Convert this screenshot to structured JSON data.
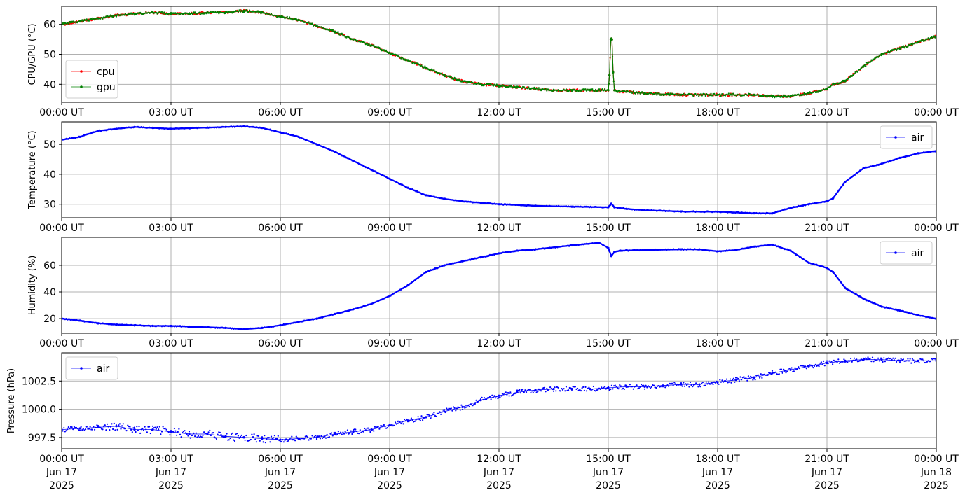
{
  "figure": {
    "x_tick_labels": [
      "00:00 UT",
      "03:00 UT",
      "06:00 UT",
      "09:00 UT",
      "12:00 UT",
      "15:00 UT",
      "18:00 UT",
      "21:00 UT",
      "00:00 UT"
    ],
    "x_date_labels": [
      "Jun 17",
      "Jun 17",
      "Jun 17",
      "Jun 17",
      "Jun 17",
      "Jun 17",
      "Jun 17",
      "Jun 17",
      "Jun 18"
    ],
    "x_year_labels": [
      "2025",
      "2025",
      "2025",
      "2025",
      "2025",
      "2025",
      "2025",
      "2025",
      "2025"
    ]
  },
  "chart_data": [
    {
      "type": "line",
      "ylabel": "CPU/GPU (°C)",
      "xlim": [
        "2025-06-17T00:00",
        "2025-06-18T00:00"
      ],
      "ylim": [
        34,
        66
      ],
      "yticks": [
        40,
        50,
        60
      ],
      "ytick_labels": [
        "40",
        "50",
        "60"
      ],
      "grid": true,
      "legend": "lower-left",
      "series": [
        {
          "name": "cpu",
          "color": "#ff0000",
          "x": [
            "00:00",
            "00:30",
            "01:00",
            "01:30",
            "02:00",
            "02:30",
            "03:00",
            "03:30",
            "04:00",
            "04:30",
            "05:00",
            "05:30",
            "06:00",
            "06:30",
            "07:00",
            "07:30",
            "08:00",
            "08:30",
            "09:00",
            "09:30",
            "10:00",
            "10:30",
            "11:00",
            "11:30",
            "12:00",
            "12:30",
            "13:00",
            "13:30",
            "14:00",
            "14:30",
            "15:00",
            "15:02",
            "15:04",
            "15:06",
            "15:08",
            "15:10",
            "15:15",
            "15:30",
            "16:00",
            "17:00",
            "18:00",
            "19:00",
            "19:30",
            "20:00",
            "20:30",
            "21:00",
            "21:10",
            "21:30",
            "22:00",
            "22:30",
            "23:00",
            "23:30",
            "24:00"
          ],
          "y": [
            60,
            61,
            62,
            63,
            63.5,
            64,
            63.5,
            63.5,
            64,
            64,
            64.5,
            64,
            62.5,
            61.5,
            59.5,
            57.5,
            55,
            53,
            50.5,
            48,
            45.5,
            43,
            41,
            40,
            39.5,
            39,
            38.5,
            38,
            38,
            38,
            38,
            43,
            55,
            55,
            44,
            38,
            37.5,
            37.5,
            37,
            36.5,
            36.5,
            36.5,
            36,
            36,
            37,
            38.5,
            40,
            41,
            46,
            50,
            52,
            54,
            56
          ]
        },
        {
          "name": "gpu",
          "color": "#008000",
          "x": [
            "00:00",
            "00:30",
            "01:00",
            "01:30",
            "02:00",
            "02:30",
            "03:00",
            "03:30",
            "04:00",
            "04:30",
            "05:00",
            "05:30",
            "06:00",
            "06:30",
            "07:00",
            "07:30",
            "08:00",
            "08:30",
            "09:00",
            "09:30",
            "10:00",
            "10:30",
            "11:00",
            "11:30",
            "12:00",
            "12:30",
            "13:00",
            "13:30",
            "14:00",
            "14:30",
            "15:00",
            "15:02",
            "15:04",
            "15:06",
            "15:08",
            "15:10",
            "15:15",
            "15:30",
            "16:00",
            "17:00",
            "18:00",
            "19:00",
            "19:30",
            "20:00",
            "20:30",
            "21:00",
            "21:10",
            "21:30",
            "22:00",
            "22:30",
            "23:00",
            "23:30",
            "24:00"
          ],
          "y": [
            60,
            61,
            62,
            63,
            63.5,
            64,
            63.5,
            63.5,
            64,
            64,
            64.5,
            64,
            62.5,
            61.5,
            59.5,
            57.5,
            55,
            53,
            50.5,
            48,
            45.5,
            43,
            41,
            40,
            39.5,
            39,
            38.5,
            38,
            38,
            38,
            38,
            43,
            55,
            55,
            44,
            38,
            37.5,
            37.5,
            37,
            36.5,
            36.5,
            36.5,
            36,
            36,
            37,
            38.5,
            40,
            41,
            46,
            50,
            52,
            54,
            56
          ]
        }
      ]
    },
    {
      "type": "line",
      "ylabel": "Temperature (°C)",
      "xlim": [
        "2025-06-17T00:00",
        "2025-06-18T00:00"
      ],
      "ylim": [
        25.5,
        57.5
      ],
      "yticks": [
        30,
        40,
        50
      ],
      "ytick_labels": [
        "30",
        "40",
        "50"
      ],
      "grid": true,
      "legend": "upper-right",
      "series": [
        {
          "name": "air",
          "color": "#0000ff",
          "x": [
            "00:00",
            "00:30",
            "01:00",
            "01:30",
            "02:00",
            "02:30",
            "03:00",
            "03:30",
            "04:00",
            "04:30",
            "05:00",
            "05:30",
            "06:00",
            "06:30",
            "07:00",
            "07:30",
            "08:00",
            "08:30",
            "09:00",
            "09:30",
            "10:00",
            "10:30",
            "11:00",
            "11:30",
            "12:00",
            "13:00",
            "14:00",
            "15:00",
            "15:05",
            "15:10",
            "15:30",
            "16:00",
            "17:00",
            "18:00",
            "19:00",
            "19:30",
            "20:00",
            "20:30",
            "21:00",
            "21:10",
            "21:30",
            "22:00",
            "22:30",
            "23:00",
            "23:30",
            "24:00"
          ],
          "y": [
            51.5,
            52.5,
            54.5,
            55.2,
            55.8,
            55.5,
            55.2,
            55.4,
            55.6,
            55.8,
            56,
            55.5,
            54,
            52.5,
            50,
            47.5,
            44.5,
            41.5,
            38.5,
            35.5,
            33,
            31.8,
            31,
            30.5,
            30,
            29.5,
            29.2,
            29,
            30.2,
            29,
            28.5,
            28,
            27.6,
            27.5,
            27,
            27,
            28.8,
            30,
            31,
            32,
            37.5,
            42,
            43.5,
            45.5,
            47,
            47.8
          ]
        }
      ]
    },
    {
      "type": "line",
      "ylabel": "Humidity (%)",
      "xlim": [
        "2025-06-17T00:00",
        "2025-06-18T00:00"
      ],
      "ylim": [
        9,
        81
      ],
      "yticks": [
        20,
        40,
        60
      ],
      "ytick_labels": [
        "20",
        "40",
        "60"
      ],
      "grid": true,
      "legend": "upper-right",
      "series": [
        {
          "name": "air",
          "color": "#0000ff",
          "x": [
            "00:00",
            "00:30",
            "01:00",
            "01:30",
            "02:00",
            "02:30",
            "03:00",
            "03:30",
            "04:00",
            "04:30",
            "05:00",
            "05:30",
            "06:00",
            "06:30",
            "07:00",
            "07:30",
            "08:00",
            "08:30",
            "09:00",
            "09:30",
            "10:00",
            "10:30",
            "11:00",
            "11:30",
            "12:00",
            "12:30",
            "13:00",
            "14:00",
            "14:45",
            "15:00",
            "15:05",
            "15:10",
            "15:20",
            "16:00",
            "17:00",
            "17:30",
            "18:00",
            "18:30",
            "19:00",
            "19:30",
            "20:00",
            "20:30",
            "21:00",
            "21:10",
            "21:30",
            "22:00",
            "22:30",
            "23:00",
            "23:30",
            "24:00"
          ],
          "y": [
            20,
            18.5,
            16.5,
            15.5,
            15,
            14.5,
            14.5,
            14,
            13.5,
            13,
            12,
            13,
            15,
            17.5,
            20,
            23.5,
            27,
            31,
            37,
            45,
            55,
            60,
            63,
            66,
            69,
            71,
            72,
            75,
            77,
            73,
            67,
            70,
            71,
            71.5,
            72,
            72,
            70.5,
            71.5,
            74,
            75.5,
            71,
            62,
            58,
            55,
            43,
            35,
            29,
            26,
            22.5,
            20
          ]
        }
      ]
    },
    {
      "type": "scatter",
      "ylabel": "Pressure (hPa)",
      "xlim": [
        "2025-06-17T00:00",
        "2025-06-18T00:00"
      ],
      "ylim": [
        996.5,
        1005
      ],
      "yticks": [
        997.5,
        1000.0,
        1002.5
      ],
      "ytick_labels": [
        "997.5",
        "1000.0",
        "1002.5"
      ],
      "grid": true,
      "legend": "upper-left",
      "series": [
        {
          "name": "air",
          "color": "#0000ff",
          "x": [
            "00:00",
            "00:30",
            "01:00",
            "01:30",
            "02:00",
            "02:30",
            "03:00",
            "03:30",
            "04:00",
            "04:30",
            "05:00",
            "05:30",
            "06:00",
            "06:30",
            "07:00",
            "07:30",
            "08:00",
            "08:30",
            "09:00",
            "09:30",
            "10:00",
            "10:30",
            "11:00",
            "11:30",
            "12:00",
            "12:30",
            "13:00",
            "13:30",
            "14:00",
            "14:30",
            "15:00",
            "15:30",
            "16:00",
            "16:30",
            "17:00",
            "17:30",
            "18:00",
            "18:30",
            "19:00",
            "19:30",
            "20:00",
            "20:30",
            "21:00",
            "21:30",
            "22:00",
            "22:30",
            "23:00",
            "23:30",
            "24:00"
          ],
          "y": [
            998.2,
            998.3,
            998.4,
            998.5,
            998.2,
            998.2,
            998.0,
            997.8,
            997.8,
            997.6,
            997.5,
            997.4,
            997.3,
            997.4,
            997.5,
            997.8,
            998.0,
            998.2,
            998.6,
            999.0,
            999.3,
            999.8,
            1000.2,
            1000.8,
            1001.2,
            1001.5,
            1001.7,
            1001.8,
            1001.8,
            1001.8,
            1001.9,
            1002.0,
            1002.0,
            1002.1,
            1002.2,
            1002.2,
            1002.4,
            1002.6,
            1002.8,
            1003.2,
            1003.5,
            1003.8,
            1004.1,
            1004.3,
            1004.4,
            1004.4,
            1004.3,
            1004.3,
            1004.3
          ]
        }
      ]
    }
  ]
}
